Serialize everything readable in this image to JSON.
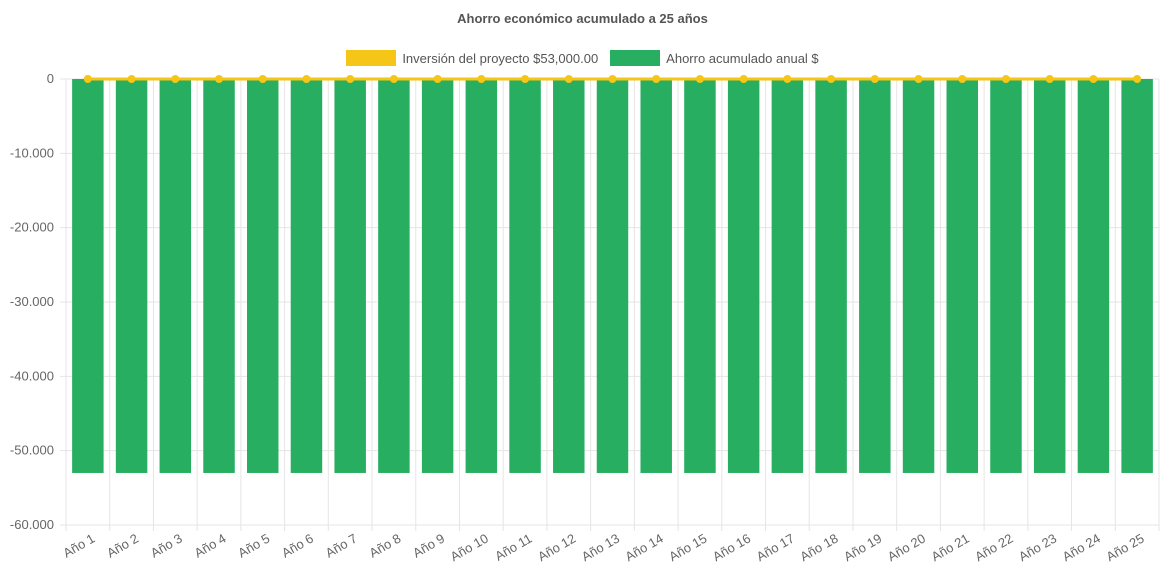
{
  "chart_data": {
    "type": "bar",
    "title": "Ahorro económico acumulado a 25 años",
    "categories": [
      "Año 1",
      "Año 2",
      "Año 3",
      "Año 4",
      "Año 5",
      "Año 6",
      "Año 7",
      "Año 8",
      "Año 9",
      "Año 10",
      "Año 11",
      "Año 12",
      "Año 13",
      "Año 14",
      "Año 15",
      "Año 16",
      "Año 17",
      "Año 18",
      "Año 19",
      "Año 20",
      "Año 21",
      "Año 22",
      "Año 23",
      "Año 24",
      "Año 25"
    ],
    "series": [
      {
        "name": "Inversión del proyecto $53,000.00",
        "type": "line",
        "color": "#f5c518",
        "values": [
          0,
          0,
          0,
          0,
          0,
          0,
          0,
          0,
          0,
          0,
          0,
          0,
          0,
          0,
          0,
          0,
          0,
          0,
          0,
          0,
          0,
          0,
          0,
          0,
          0
        ]
      },
      {
        "name": "Ahorro acumulado anual $",
        "type": "bar",
        "color": "#27ae60",
        "values": [
          -53000,
          -53000,
          -53000,
          -53000,
          -53000,
          -53000,
          -53000,
          -53000,
          -53000,
          -53000,
          -53000,
          -53000,
          -53000,
          -53000,
          -53000,
          -53000,
          -53000,
          -53000,
          -53000,
          -53000,
          -53000,
          -53000,
          -53000,
          -53000,
          -53000
        ]
      }
    ],
    "yticks": [
      "0",
      "-10.000",
      "-20.000",
      "-30.000",
      "-40.000",
      "-50.000",
      "-60.000"
    ],
    "ylim": [
      -60000,
      0
    ],
    "grid": true,
    "legend_position": "top"
  }
}
